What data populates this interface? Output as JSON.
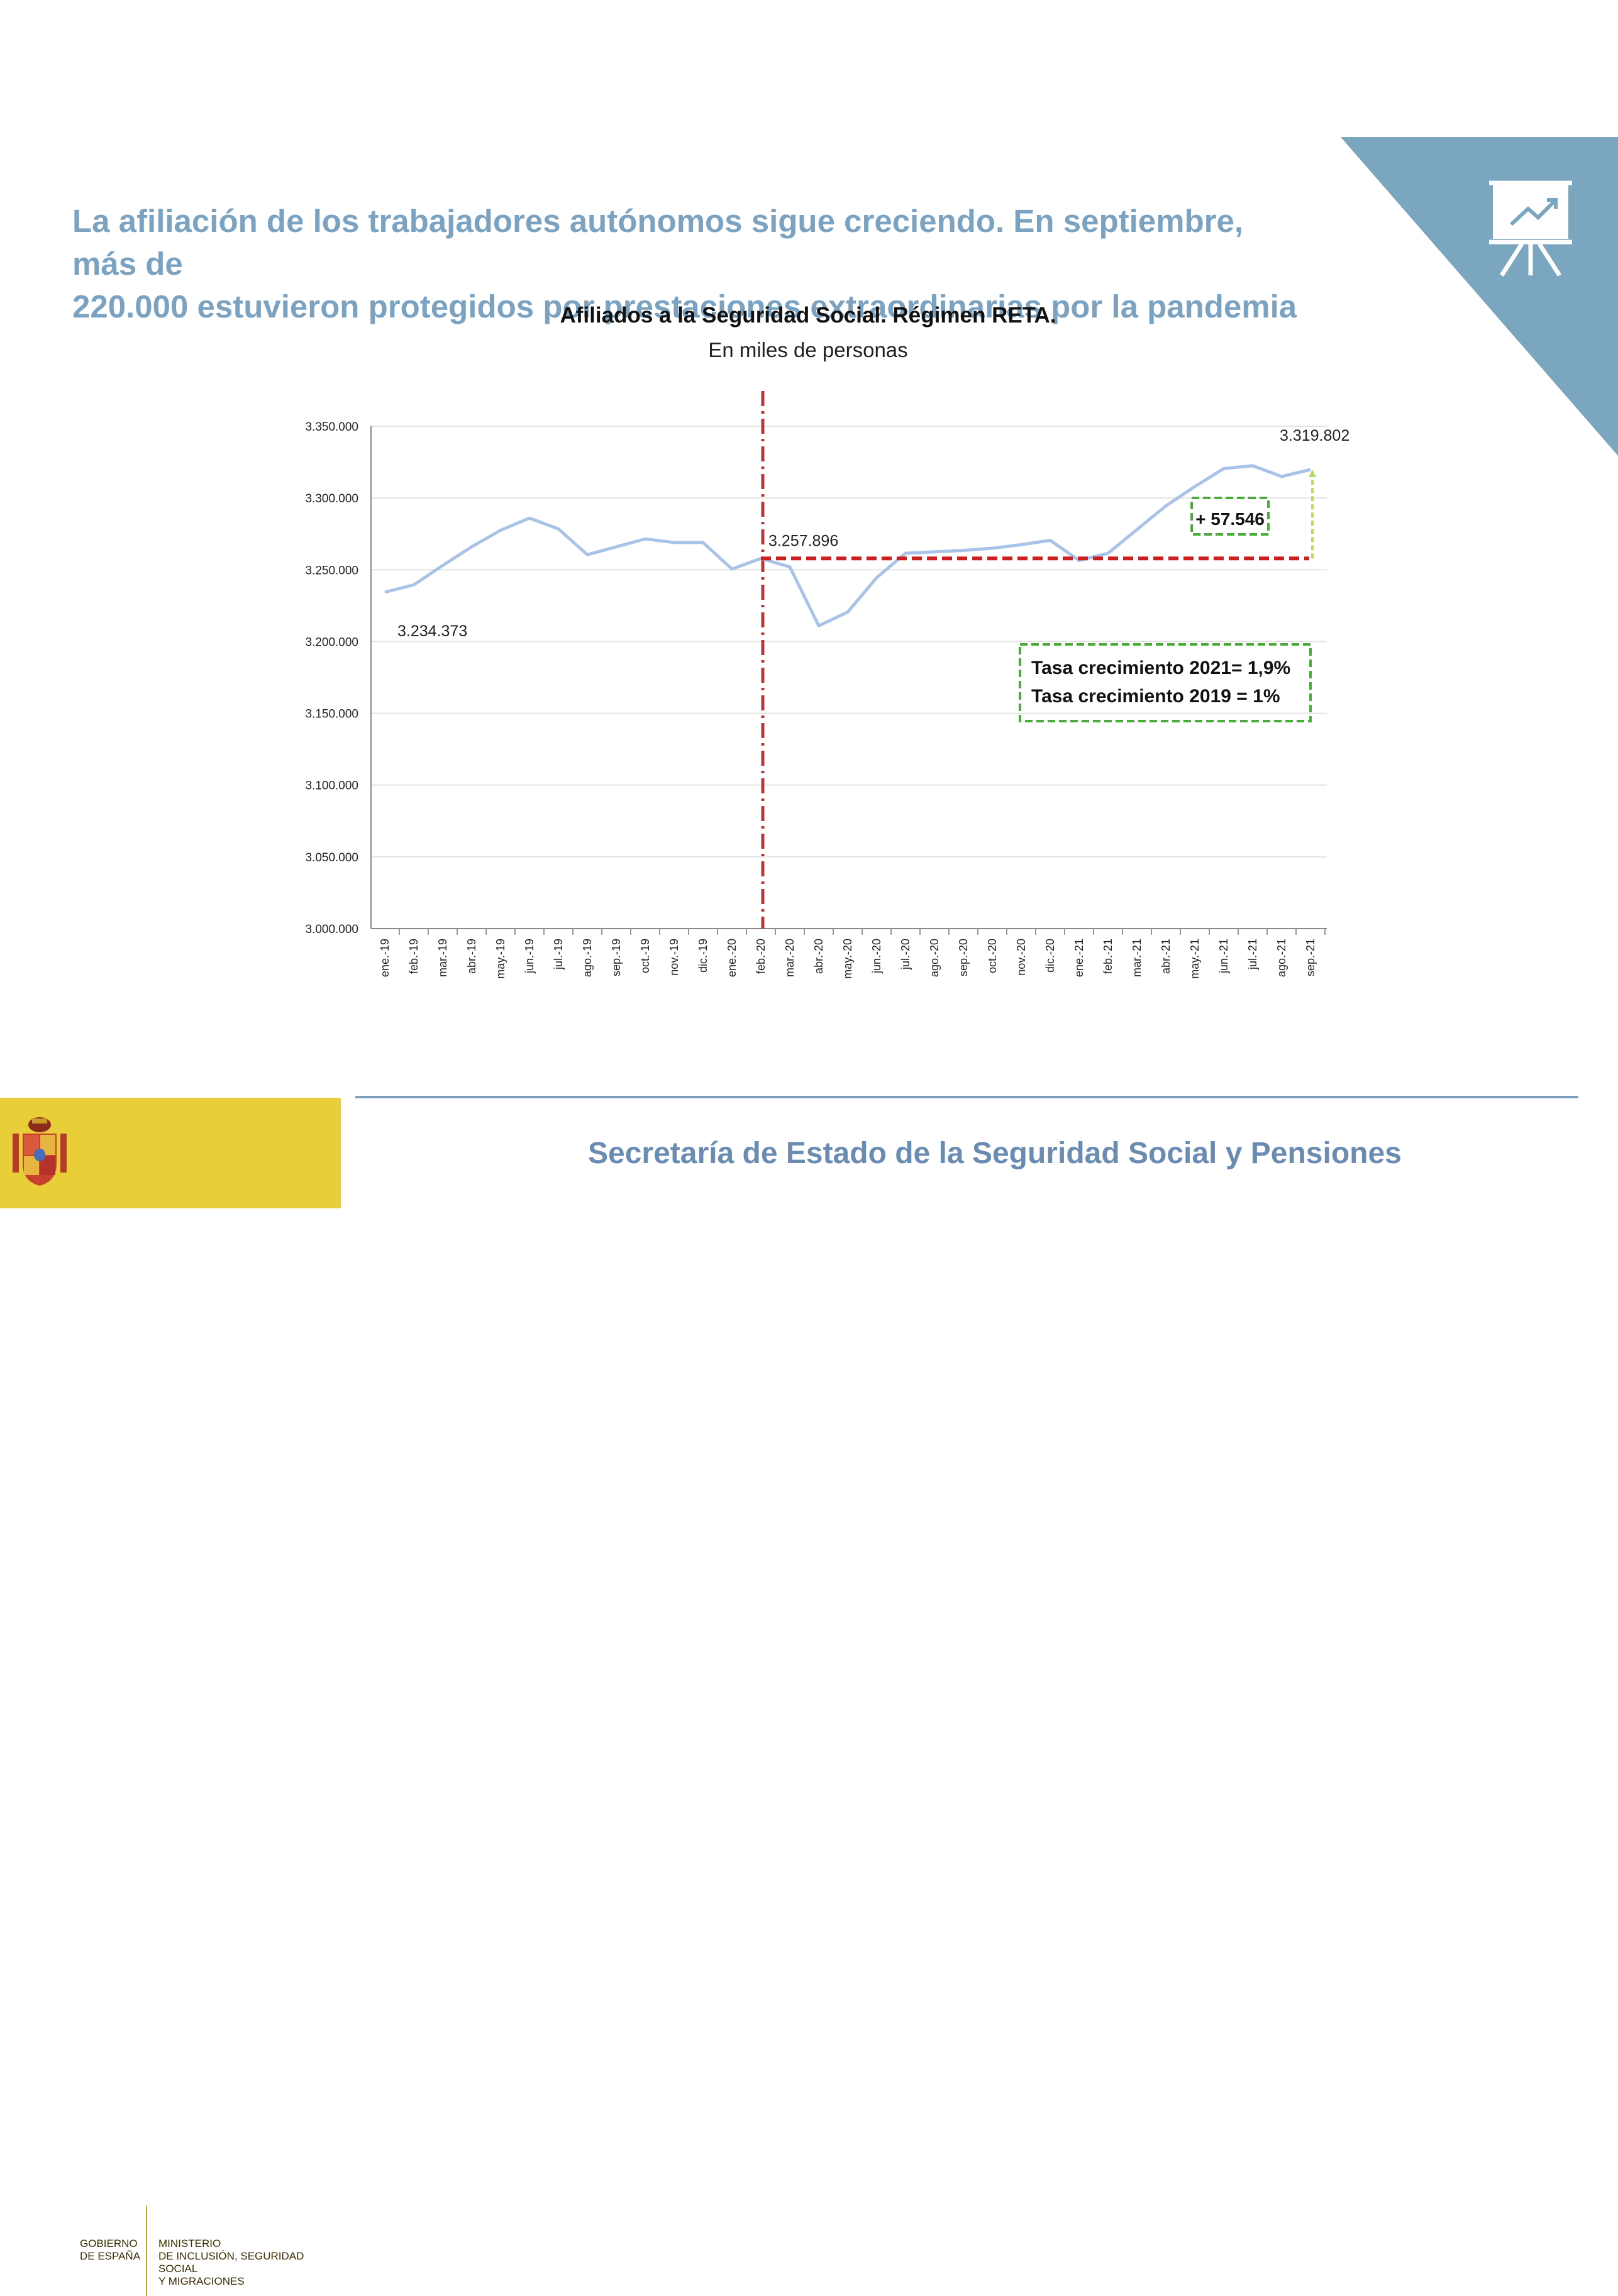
{
  "headline": {
    "line1": "La afiliación de los trabajadores autónomos sigue creciendo. En septiembre, más de",
    "line2": "220.000 estuvieron protegidos por prestaciones extraordinarias por la pandemia"
  },
  "chart_data": {
    "type": "line",
    "title": "Afiliados a la Seguridad Social. Régimen RETA.",
    "subtitle": "En miles de personas",
    "categories": [
      "ene.-19",
      "feb.-19",
      "mar.-19",
      "abr.-19",
      "may.-19",
      "jun.-19",
      "jul.-19",
      "ago.-19",
      "sep.-19",
      "oct.-19",
      "nov.-19",
      "dic.-19",
      "ene.-20",
      "feb.-20",
      "mar.-20",
      "abr.-20",
      "may.-20",
      "jun.-20",
      "jul.-20",
      "ago.-20",
      "sep.-20",
      "oct.-20",
      "nov.-20",
      "dic.-20",
      "ene.-21",
      "feb.-21",
      "mar.-21",
      "abr.-21",
      "may.-21",
      "jun.-21",
      "jul.-21",
      "ago.-21",
      "sep.-21"
    ],
    "values": [
      3234373,
      3239500,
      3253000,
      3266000,
      3277500,
      3286000,
      3278500,
      3260500,
      3266000,
      3271500,
      3269000,
      3269000,
      3250500,
      3257896,
      3252000,
      3211000,
      3220500,
      3244500,
      3261500,
      3262500,
      3263500,
      3265000,
      3267500,
      3270500,
      3256500,
      3261500,
      3278000,
      3294500,
      3308000,
      3320500,
      3322500,
      3315000,
      3319802
    ],
    "ylim": [
      3000000,
      3350000
    ],
    "yticks": [
      3000000,
      3050000,
      3100000,
      3150000,
      3200000,
      3250000,
      3300000,
      3350000
    ],
    "ytick_labels": [
      "3.000.000",
      "3.050.000",
      "3.100.000",
      "3.150.000",
      "3.200.000",
      "3.250.000",
      "3.300.000",
      "3.350.000"
    ],
    "grid": true,
    "line_color": "#a9c3e8",
    "annotations": {
      "start_label": "3.234.373",
      "feb20_label": "3.257.896",
      "end_label": "3.319.802",
      "difference_label": "+ 57.546",
      "rate_2021": "Tasa crecimiento 2021= 1,9%",
      "rate_2019": "Tasa crecimiento 2019 = 1%",
      "reference_level": 3257896,
      "reference_color": "#cc1f1f",
      "pandemic_marker_category": "feb.-20",
      "pandemic_marker_color": "#b23a3a",
      "box_color": "#4bab3a",
      "increase_arrow_color": "#b5d96b"
    }
  },
  "footer": {
    "secretaria": "Secretaría de Estado de la Seguridad Social y Pensiones",
    "gobierno_line1": "GOBIERNO",
    "gobierno_line2": "DE ESPAÑA",
    "ministerio_line1": "MINISTERIO",
    "ministerio_line2": "DE INCLUSIÓN, SEGURIDAD SOCIAL",
    "ministerio_line3": "Y MIGRACIONES"
  },
  "colors": {
    "corner": "#7aa6bf",
    "headline": "#7ba3c1",
    "logo_band": "#e8cf3a",
    "footer": "#6a8cb2"
  },
  "icons": {
    "corner_icon": "presentation-chart-icon",
    "logo_icon": "coat-of-arms-icon"
  }
}
